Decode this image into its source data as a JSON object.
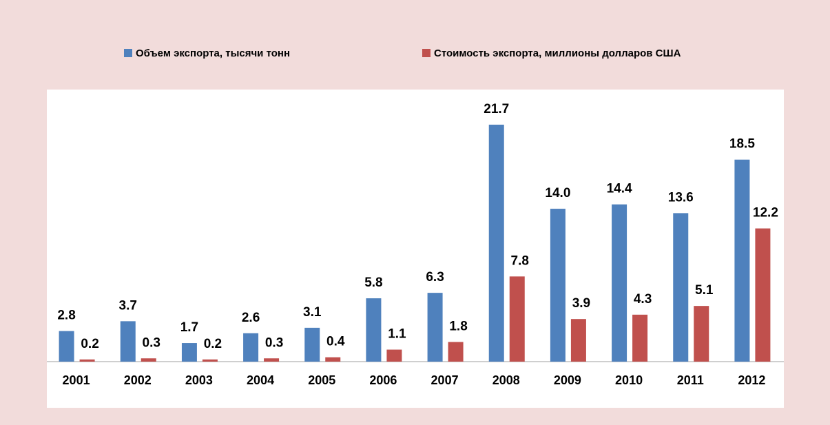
{
  "chart_data": {
    "type": "bar",
    "categories": [
      "2001",
      "2002",
      "2003",
      "2004",
      "2005",
      "2006",
      "2007",
      "2008",
      "2009",
      "2010",
      "2011",
      "2012"
    ],
    "series": [
      {
        "name": "Объем экспорта, тысячи тонн",
        "color": "#4f81bd",
        "values": [
          2.8,
          3.7,
          1.7,
          2.6,
          3.1,
          5.8,
          6.3,
          21.7,
          14,
          14.4,
          13.6,
          18.5
        ],
        "value_labels": [
          "2.8",
          "3.7",
          "1.7",
          "2.6",
          "3.1",
          "5.8",
          "6.3",
          "21.7",
          "14.0",
          "14.4",
          "13.6",
          "18.5"
        ]
      },
      {
        "name": "Стоимость экспорта, миллионы долларов США",
        "color": "#c0504d",
        "values": [
          0.2,
          0.3,
          0.2,
          0.3,
          0.4,
          1.1,
          1.8,
          7.8,
          3.9,
          4.3,
          5.1,
          12.2
        ],
        "value_labels": [
          "0.2",
          "0.3",
          "0.2",
          "0.3",
          "0.4",
          "1.1",
          "1.8",
          "7.8",
          "3.9",
          "4.3",
          "5.1",
          "12.2"
        ]
      }
    ],
    "legend": "top"
  }
}
